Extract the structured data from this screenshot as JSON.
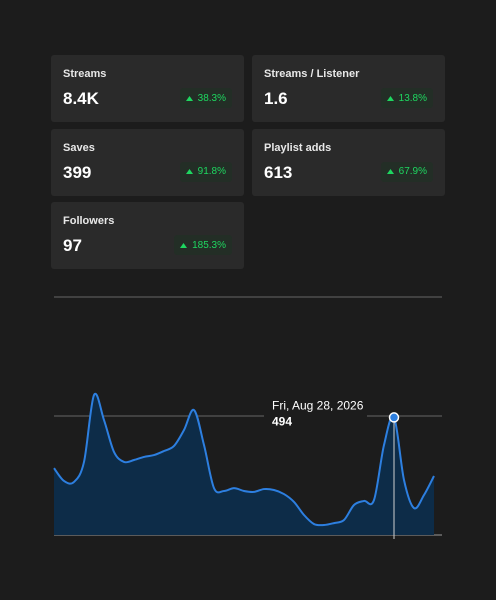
{
  "cards": [
    {
      "label": "Streams",
      "value": "8.4K",
      "change": "38.3%"
    },
    {
      "label": "Streams / Listener",
      "value": "1.6",
      "change": "13.8%"
    },
    {
      "label": "Saves",
      "value": "399",
      "change": "91.8%"
    },
    {
      "label": "Playlist adds",
      "value": "613",
      "change": "67.9%"
    },
    {
      "label": "Followers",
      "value": "97",
      "change": "185.3%"
    }
  ],
  "chart_data": {
    "type": "area",
    "categories": [
      null,
      null,
      null,
      null,
      null,
      null,
      null,
      null,
      null,
      null,
      null,
      null,
      null,
      null,
      null,
      null,
      null,
      null,
      null,
      null,
      null,
      null,
      null,
      null,
      null,
      null,
      null,
      null,
      null,
      null,
      null,
      null,
      null,
      null,
      "Fri, Aug 28, 2026",
      null,
      null,
      null,
      null
    ],
    "values": [
      281,
      227,
      223,
      307,
      588,
      483,
      349,
      307,
      315,
      328,
      336,
      353,
      374,
      441,
      525,
      378,
      197,
      185,
      197,
      185,
      181,
      193,
      189,
      172,
      139,
      84,
      46,
      42,
      50,
      63,
      126,
      143,
      147,
      378,
      494,
      231,
      113,
      168,
      248
    ],
    "color": "#2d7fe0",
    "ylim": [
      0,
      1000
    ],
    "yticks": [
      0,
      500,
      1000
    ],
    "grid": true
  }
}
